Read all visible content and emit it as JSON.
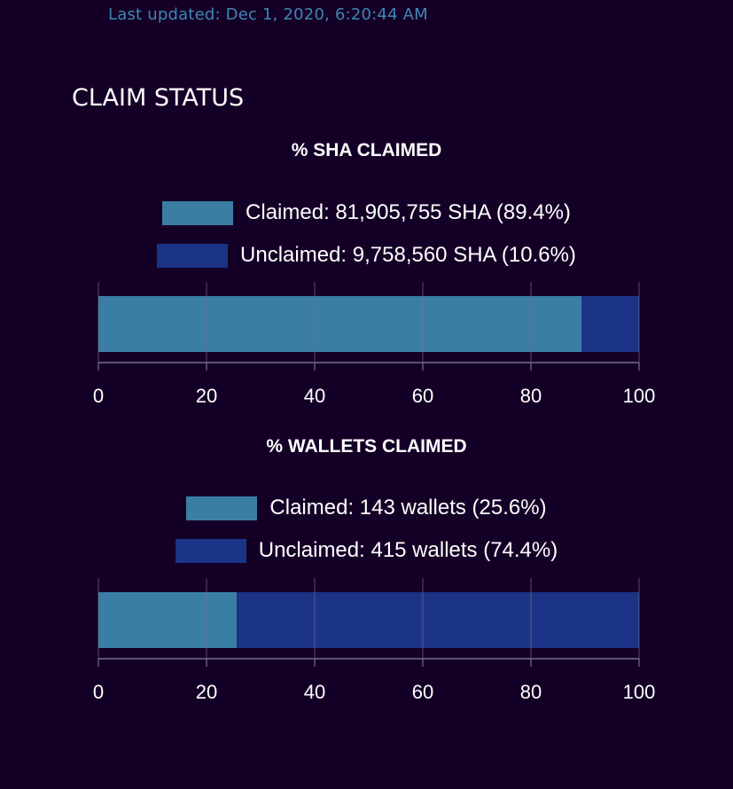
{
  "header": {
    "last_updated": "Last updated: Dec 1, 2020, 6:20:44 AM",
    "section_title": "CLAIM STATUS"
  },
  "colors": {
    "background": "#140026",
    "claimed": "#3a7fa3",
    "unclaimed": "#1c3486",
    "timestamp": "#3f86b5",
    "grid": "#7a6f8a"
  },
  "chart_data": [
    {
      "type": "bar",
      "orientation": "horizontal",
      "stacked": true,
      "title": "% SHA CLAIMED",
      "xlim": [
        0,
        100
      ],
      "x_ticks": [
        "0",
        "20",
        "40",
        "60",
        "80",
        "100"
      ],
      "grid": true,
      "legend_position": "top",
      "series": [
        {
          "name": "Claimed: 81,905,755 SHA (89.4%)",
          "values": [
            89.4
          ],
          "color": "#3a7fa3"
        },
        {
          "name": "Unclaimed: 9,758,560 SHA (10.6%)",
          "values": [
            10.6
          ],
          "color": "#1c3486"
        }
      ]
    },
    {
      "type": "bar",
      "orientation": "horizontal",
      "stacked": true,
      "title": "% WALLETS CLAIMED",
      "xlim": [
        0,
        100
      ],
      "x_ticks": [
        "0",
        "20",
        "40",
        "60",
        "80",
        "100"
      ],
      "grid": true,
      "legend_position": "top",
      "series": [
        {
          "name": "Claimed: 143 wallets (25.6%)",
          "values": [
            25.6
          ],
          "color": "#3a7fa3"
        },
        {
          "name": "Unclaimed: 415 wallets (74.4%)",
          "values": [
            74.4
          ],
          "color": "#1c3486"
        }
      ]
    }
  ]
}
